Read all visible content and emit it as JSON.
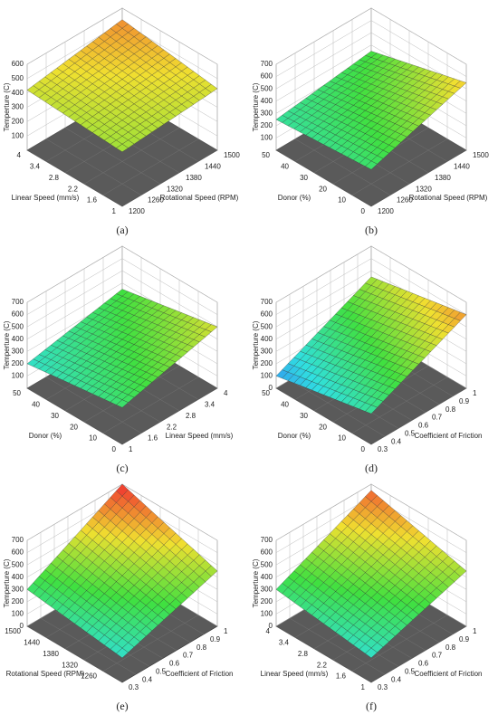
{
  "chart_data": [
    {
      "type": "surface",
      "panel_label": "(a)",
      "zlabel": "Temperture (C)",
      "xlabel": "Rotational Speed (RPM)",
      "ylabel": "Linear Speed (mm/s)",
      "xlim": [
        1200,
        1500
      ],
      "xticks": [
        1200,
        1260,
        1320,
        1380,
        1440,
        1500
      ],
      "ylim": [
        1,
        4
      ],
      "yticks": [
        1,
        1.6,
        2.2,
        2.8,
        3.4,
        4
      ],
      "zlim": [
        0,
        600
      ],
      "zticks": [
        100,
        200,
        300,
        400,
        500,
        600
      ],
      "z": [
        [
          380,
          430
        ],
        [
          420,
          520
        ]
      ]
    },
    {
      "type": "surface",
      "panel_label": "(b)",
      "zlabel": "Temperture (C)",
      "xlabel": "Rotational Speed (RPM)",
      "ylabel": "Donor (%)",
      "xlim": [
        1200,
        1500
      ],
      "xticks": [
        1200,
        1260,
        1320,
        1380,
        1440,
        1500
      ],
      "ylim": [
        0,
        50
      ],
      "yticks": [
        0,
        10,
        20,
        30,
        40,
        50
      ],
      "zlim": [
        0,
        700
      ],
      "zticks": [
        100,
        200,
        300,
        400,
        500,
        600,
        700
      ],
      "z": [
        [
          300,
          550
        ],
        [
          250,
          350
        ]
      ]
    },
    {
      "type": "surface",
      "panel_label": "(c)",
      "zlabel": "Temperture (C)",
      "xlabel": "Linear Speed (mm/s)",
      "ylabel": "Donor (%)",
      "xlim": [
        1,
        4
      ],
      "xticks": [
        1,
        1.6,
        2.2,
        2.8,
        3.4,
        4
      ],
      "ylim": [
        0,
        50
      ],
      "yticks": [
        0,
        10,
        20,
        30,
        40,
        50
      ],
      "zlim": [
        0,
        700
      ],
      "zticks": [
        100,
        200,
        300,
        400,
        500,
        600,
        700
      ],
      "z": [
        [
          300,
          500
        ],
        [
          200,
          350
        ]
      ]
    },
    {
      "type": "surface",
      "panel_label": "(d)",
      "zlabel": "Temperture (C)",
      "xlabel": "Coefficient of Friction",
      "ylabel": "Donor (%)",
      "xlim": [
        0.3,
        1
      ],
      "xticks": [
        0.3,
        0.4,
        0.5,
        0.6,
        0.7,
        0.8,
        0.9,
        1
      ],
      "ylim": [
        0,
        50
      ],
      "yticks": [
        0,
        10,
        20,
        30,
        40,
        50
      ],
      "zlim": [
        0,
        700
      ],
      "zticks": [
        0,
        100,
        200,
        300,
        400,
        500,
        600,
        700
      ],
      "z": [
        [
          250,
          600
        ],
        [
          100,
          450
        ]
      ]
    },
    {
      "type": "surface",
      "panel_label": "(e)",
      "zlabel": "Temperture (C)",
      "xlabel": "Coefficient of Friction",
      "ylabel": "Rotational Speed (RPM)",
      "xlim": [
        0.3,
        1
      ],
      "xticks": [
        0.3,
        0.4,
        0.5,
        0.6,
        0.7,
        0.8,
        0.9,
        1
      ],
      "ylim": [
        1200,
        1500
      ],
      "yticks": [
        1260,
        1320,
        1380,
        1440,
        1500
      ],
      "zlim": [
        0,
        700
      ],
      "zticks": [
        0,
        100,
        200,
        300,
        400,
        500,
        600,
        700
      ],
      "z": [
        [
          200,
          450
        ],
        [
          300,
          700
        ]
      ]
    },
    {
      "type": "surface",
      "panel_label": "(f)",
      "zlabel": "Temperture (C)",
      "xlabel": "Coefficient of Friction",
      "ylabel": "Linear Speed (mm/s)",
      "xlim": [
        0.3,
        1
      ],
      "xticks": [
        0.3,
        0.4,
        0.5,
        0.6,
        0.7,
        0.8,
        0.9,
        1
      ],
      "ylim": [
        1,
        4
      ],
      "yticks": [
        1,
        1.6,
        2.2,
        2.8,
        3.4,
        4
      ],
      "zlim": [
        0,
        700
      ],
      "zticks": [
        0,
        100,
        200,
        300,
        400,
        500,
        600,
        700
      ],
      "z": [
        [
          200,
          450
        ],
        [
          300,
          650
        ]
      ]
    }
  ]
}
